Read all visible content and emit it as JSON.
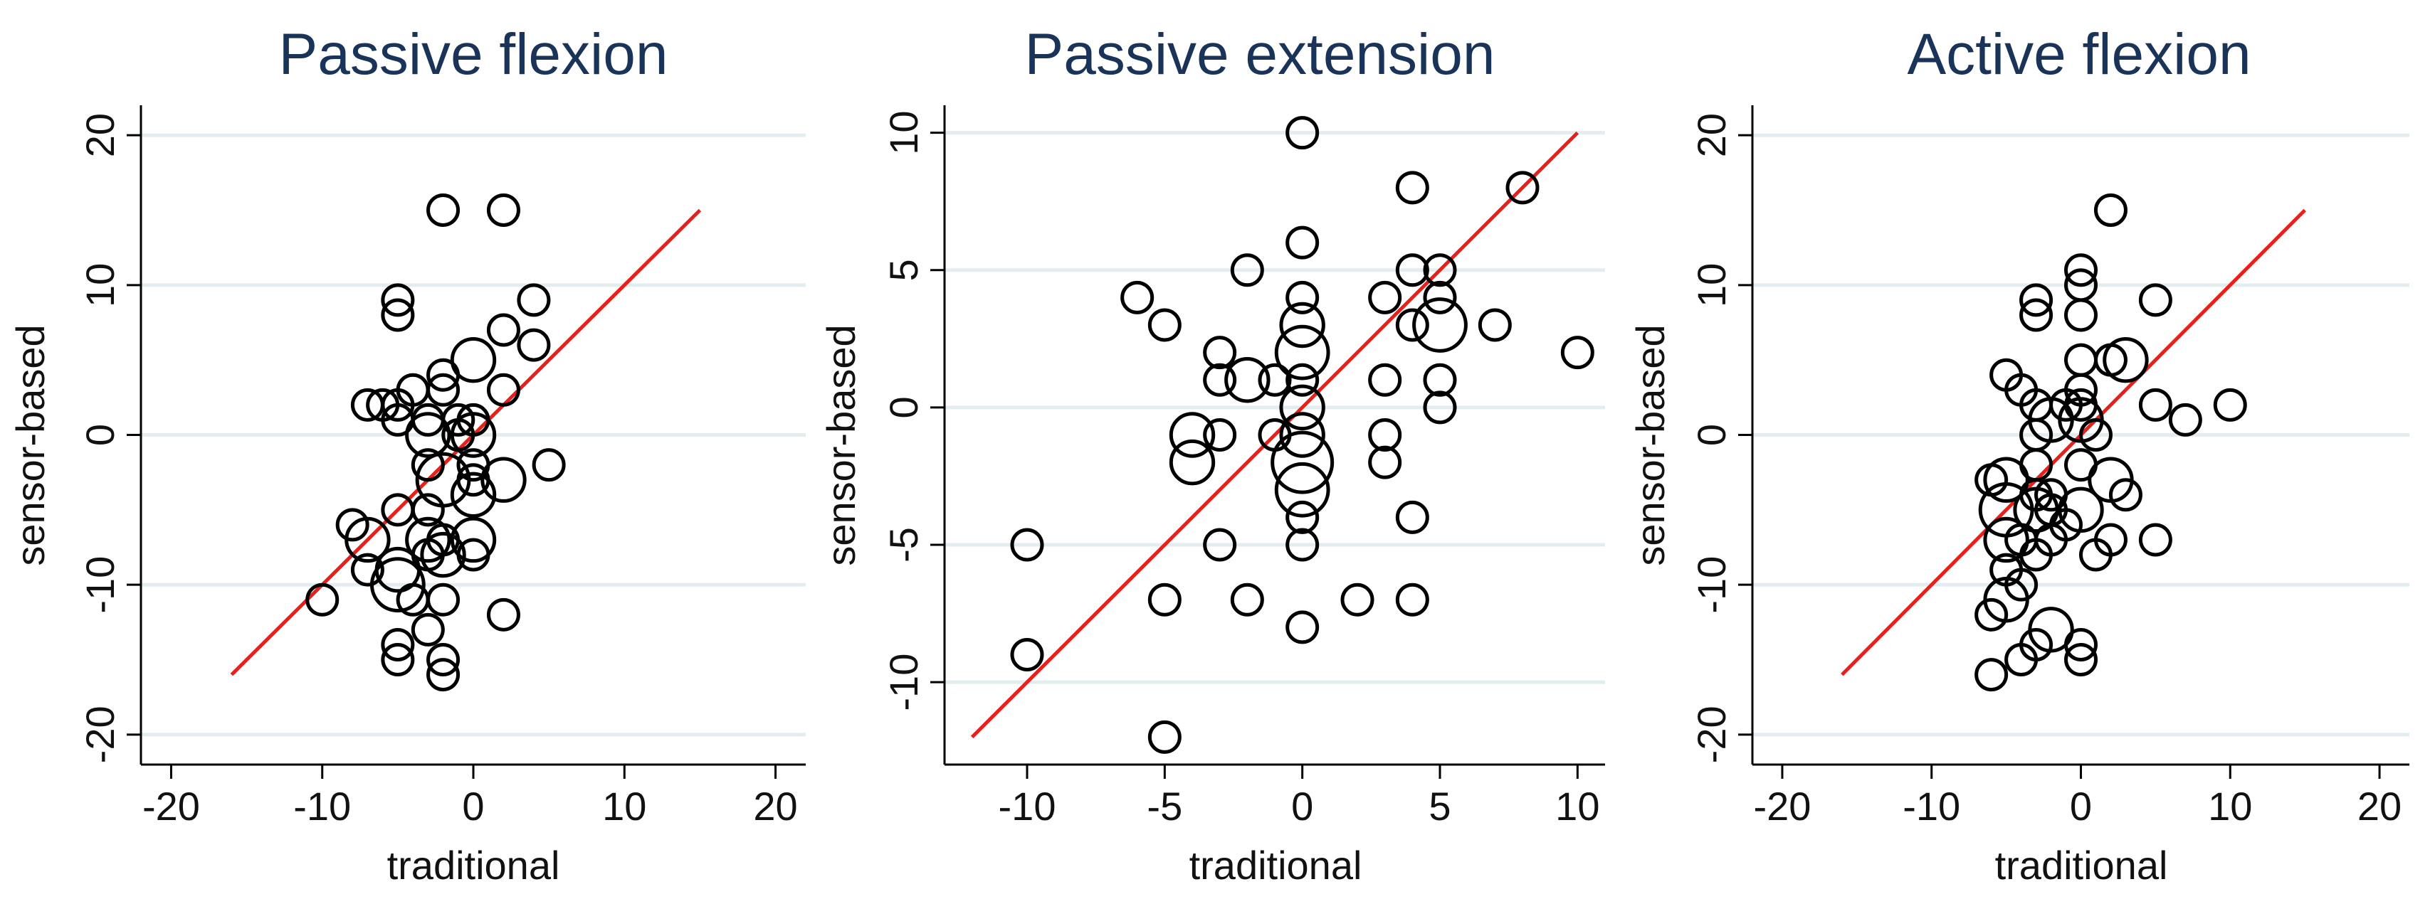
{
  "chart_data": [
    {
      "type": "scatter",
      "title": "Passive flexion",
      "xlabel": "traditional",
      "ylabel": "sensor-based",
      "xlim": [
        -22,
        22
      ],
      "ylim": [
        -22,
        22
      ],
      "xticks": [
        -20,
        -10,
        0,
        10,
        20
      ],
      "yticks": [
        -20,
        -10,
        0,
        10,
        20
      ],
      "grid": true,
      "line": {
        "x": [
          -16,
          15
        ],
        "y": [
          -16,
          15
        ],
        "color": "#e8201c"
      },
      "points": [
        {
          "x": -2,
          "y": 15,
          "n": 1
        },
        {
          "x": 2,
          "y": 15,
          "n": 1
        },
        {
          "x": 4,
          "y": 9,
          "n": 1
        },
        {
          "x": -5,
          "y": 9,
          "n": 1
        },
        {
          "x": -5,
          "y": 8,
          "n": 1
        },
        {
          "x": 2,
          "y": 7,
          "n": 1
        },
        {
          "x": 4,
          "y": 6,
          "n": 1
        },
        {
          "x": 0,
          "y": 5,
          "n": 2
        },
        {
          "x": -2,
          "y": 4,
          "n": 1
        },
        {
          "x": -4,
          "y": 3,
          "n": 1
        },
        {
          "x": -2,
          "y": 3,
          "n": 1
        },
        {
          "x": 2,
          "y": 3,
          "n": 1
        },
        {
          "x": -7,
          "y": 2,
          "n": 1
        },
        {
          "x": -6,
          "y": 2,
          "n": 1
        },
        {
          "x": -5,
          "y": 2,
          "n": 1
        },
        {
          "x": -5,
          "y": 1,
          "n": 1
        },
        {
          "x": -3,
          "y": 1,
          "n": 1
        },
        {
          "x": -1,
          "y": 1,
          "n": 1
        },
        {
          "x": 0,
          "y": 1,
          "n": 1
        },
        {
          "x": -3,
          "y": 0,
          "n": 2
        },
        {
          "x": -1,
          "y": 0,
          "n": 1
        },
        {
          "x": 0,
          "y": 0,
          "n": 2
        },
        {
          "x": -3,
          "y": -2,
          "n": 1
        },
        {
          "x": 0,
          "y": -2,
          "n": 1
        },
        {
          "x": 5,
          "y": -2,
          "n": 1
        },
        {
          "x": -2,
          "y": -3,
          "n": 3
        },
        {
          "x": 0,
          "y": -3,
          "n": 1
        },
        {
          "x": 2,
          "y": -3,
          "n": 2
        },
        {
          "x": 0,
          "y": -4,
          "n": 2
        },
        {
          "x": -5,
          "y": -5,
          "n": 1
        },
        {
          "x": -3,
          "y": -5,
          "n": 1
        },
        {
          "x": -8,
          "y": -6,
          "n": 1
        },
        {
          "x": -7,
          "y": -7,
          "n": 2
        },
        {
          "x": -3,
          "y": -7,
          "n": 2
        },
        {
          "x": -2,
          "y": -7,
          "n": 1
        },
        {
          "x": 0,
          "y": -7,
          "n": 2
        },
        {
          "x": -3,
          "y": -8,
          "n": 1
        },
        {
          "x": -2,
          "y": -8,
          "n": 2
        },
        {
          "x": 0,
          "y": -8,
          "n": 1
        },
        {
          "x": -7,
          "y": -9,
          "n": 1
        },
        {
          "x": -5,
          "y": -9,
          "n": 2
        },
        {
          "x": -5,
          "y": -10,
          "n": 3
        },
        {
          "x": -10,
          "y": -11,
          "n": 1
        },
        {
          "x": -4,
          "y": -11,
          "n": 1
        },
        {
          "x": -2,
          "y": -11,
          "n": 1
        },
        {
          "x": 2,
          "y": -12,
          "n": 1
        },
        {
          "x": -3,
          "y": -13,
          "n": 1
        },
        {
          "x": -5,
          "y": -14,
          "n": 1
        },
        {
          "x": -5,
          "y": -15,
          "n": 1
        },
        {
          "x": -2,
          "y": -15,
          "n": 1
        },
        {
          "x": -2,
          "y": -16,
          "n": 1
        }
      ]
    },
    {
      "type": "scatter",
      "title": "Passive extension",
      "xlabel": "traditional",
      "ylabel": "sensor-based",
      "xlim": [
        -13,
        11
      ],
      "ylim": [
        -13,
        11
      ],
      "xticks": [
        -10,
        -5,
        0,
        5,
        10
      ],
      "yticks": [
        -10,
        -5,
        0,
        5,
        10
      ],
      "grid": true,
      "line": {
        "x": [
          -12,
          10
        ],
        "y": [
          -12,
          10
        ],
        "color": "#e8201c"
      },
      "points": [
        {
          "x": 0,
          "y": 10,
          "n": 1
        },
        {
          "x": 4,
          "y": 8,
          "n": 1
        },
        {
          "x": 8,
          "y": 8,
          "n": 1
        },
        {
          "x": 0,
          "y": 6,
          "n": 1
        },
        {
          "x": -2,
          "y": 5,
          "n": 1
        },
        {
          "x": 4,
          "y": 5,
          "n": 1
        },
        {
          "x": 5,
          "y": 5,
          "n": 1
        },
        {
          "x": -6,
          "y": 4,
          "n": 1
        },
        {
          "x": 0,
          "y": 4,
          "n": 1
        },
        {
          "x": 3,
          "y": 4,
          "n": 1
        },
        {
          "x": 5,
          "y": 4,
          "n": 1
        },
        {
          "x": -5,
          "y": 3,
          "n": 1
        },
        {
          "x": 0,
          "y": 3,
          "n": 2
        },
        {
          "x": 4,
          "y": 3,
          "n": 1
        },
        {
          "x": 5,
          "y": 3,
          "n": 3
        },
        {
          "x": 7,
          "y": 3,
          "n": 1
        },
        {
          "x": -3,
          "y": 2,
          "n": 1
        },
        {
          "x": 0,
          "y": 2,
          "n": 3
        },
        {
          "x": 10,
          "y": 2,
          "n": 1
        },
        {
          "x": -3,
          "y": 1,
          "n": 1
        },
        {
          "x": -2,
          "y": 1,
          "n": 2
        },
        {
          "x": -1,
          "y": 1,
          "n": 1
        },
        {
          "x": 0,
          "y": 1,
          "n": 1
        },
        {
          "x": 3,
          "y": 1,
          "n": 1
        },
        {
          "x": 5,
          "y": 1,
          "n": 1
        },
        {
          "x": 0,
          "y": 0,
          "n": 2
        },
        {
          "x": 5,
          "y": 0,
          "n": 1
        },
        {
          "x": -4,
          "y": -1,
          "n": 2
        },
        {
          "x": -3,
          "y": -1,
          "n": 1
        },
        {
          "x": -1,
          "y": -1,
          "n": 1
        },
        {
          "x": 0,
          "y": -1,
          "n": 2
        },
        {
          "x": 3,
          "y": -1,
          "n": 1
        },
        {
          "x": -4,
          "y": -2,
          "n": 2
        },
        {
          "x": 0,
          "y": -2,
          "n": 4
        },
        {
          "x": 3,
          "y": -2,
          "n": 1
        },
        {
          "x": 0,
          "y": -3,
          "n": 3
        },
        {
          "x": 0,
          "y": -4,
          "n": 1
        },
        {
          "x": 4,
          "y": -4,
          "n": 1
        },
        {
          "x": -10,
          "y": -5,
          "n": 1
        },
        {
          "x": -3,
          "y": -5,
          "n": 1
        },
        {
          "x": 0,
          "y": -5,
          "n": 1
        },
        {
          "x": -5,
          "y": -7,
          "n": 1
        },
        {
          "x": -2,
          "y": -7,
          "n": 1
        },
        {
          "x": 2,
          "y": -7,
          "n": 1
        },
        {
          "x": 4,
          "y": -7,
          "n": 1
        },
        {
          "x": 0,
          "y": -8,
          "n": 1
        },
        {
          "x": -10,
          "y": -9,
          "n": 1
        },
        {
          "x": -5,
          "y": -12,
          "n": 1
        }
      ]
    },
    {
      "type": "scatter",
      "title": "Active flexion",
      "xlabel": "traditional",
      "ylabel": "sensor-based",
      "xlim": [
        -22,
        22
      ],
      "ylim": [
        -22,
        22
      ],
      "xticks": [
        -20,
        -10,
        0,
        10,
        20
      ],
      "yticks": [
        -20,
        -10,
        0,
        10,
        20
      ],
      "grid": true,
      "line": {
        "x": [
          -16,
          15
        ],
        "y": [
          -16,
          15
        ],
        "color": "#e8201c"
      },
      "points": [
        {
          "x": 2,
          "y": 15,
          "n": 1
        },
        {
          "x": 0,
          "y": 11,
          "n": 1
        },
        {
          "x": 0,
          "y": 10,
          "n": 1
        },
        {
          "x": -3,
          "y": 9,
          "n": 1
        },
        {
          "x": 5,
          "y": 9,
          "n": 1
        },
        {
          "x": -3,
          "y": 8,
          "n": 1
        },
        {
          "x": 0,
          "y": 8,
          "n": 1
        },
        {
          "x": 0,
          "y": 5,
          "n": 1
        },
        {
          "x": 2,
          "y": 5,
          "n": 1
        },
        {
          "x": 3,
          "y": 5,
          "n": 2
        },
        {
          "x": -5,
          "y": 4,
          "n": 1
        },
        {
          "x": -4,
          "y": 3,
          "n": 1
        },
        {
          "x": 0,
          "y": 3,
          "n": 1
        },
        {
          "x": -3,
          "y": 2,
          "n": 1
        },
        {
          "x": -1,
          "y": 2,
          "n": 1
        },
        {
          "x": 0,
          "y": 2,
          "n": 1
        },
        {
          "x": 5,
          "y": 2,
          "n": 1
        },
        {
          "x": 10,
          "y": 2,
          "n": 1
        },
        {
          "x": -2,
          "y": 1,
          "n": 2
        },
        {
          "x": 0,
          "y": 1,
          "n": 2
        },
        {
          "x": 7,
          "y": 1,
          "n": 1
        },
        {
          "x": -3,
          "y": 0,
          "n": 1
        },
        {
          "x": 1,
          "y": 0,
          "n": 1
        },
        {
          "x": -3,
          "y": -2,
          "n": 1
        },
        {
          "x": 0,
          "y": -2,
          "n": 1
        },
        {
          "x": -6,
          "y": -3,
          "n": 1
        },
        {
          "x": -5,
          "y": -3,
          "n": 2
        },
        {
          "x": 2,
          "y": -3,
          "n": 2
        },
        {
          "x": -3,
          "y": -4,
          "n": 1
        },
        {
          "x": -2,
          "y": -4,
          "n": 1
        },
        {
          "x": 3,
          "y": -4,
          "n": 1
        },
        {
          "x": -5,
          "y": -5,
          "n": 3
        },
        {
          "x": -3,
          "y": -5,
          "n": 2
        },
        {
          "x": -2,
          "y": -5,
          "n": 1
        },
        {
          "x": 0,
          "y": -5,
          "n": 2
        },
        {
          "x": -1,
          "y": -6,
          "n": 1
        },
        {
          "x": -5,
          "y": -7,
          "n": 2
        },
        {
          "x": -4,
          "y": -7,
          "n": 1
        },
        {
          "x": -2,
          "y": -7,
          "n": 1
        },
        {
          "x": 2,
          "y": -7,
          "n": 1
        },
        {
          "x": 5,
          "y": -7,
          "n": 1
        },
        {
          "x": -3,
          "y": -8,
          "n": 1
        },
        {
          "x": 1,
          "y": -8,
          "n": 1
        },
        {
          "x": -5,
          "y": -9,
          "n": 1
        },
        {
          "x": -4,
          "y": -10,
          "n": 1
        },
        {
          "x": -5,
          "y": -11,
          "n": 2
        },
        {
          "x": -6,
          "y": -12,
          "n": 1
        },
        {
          "x": -2,
          "y": -13,
          "n": 2
        },
        {
          "x": -3,
          "y": -14,
          "n": 1
        },
        {
          "x": 0,
          "y": -14,
          "n": 1
        },
        {
          "x": -4,
          "y": -15,
          "n": 1
        },
        {
          "x": 0,
          "y": -15,
          "n": 1
        },
        {
          "x": -6,
          "y": -16,
          "n": 1
        }
      ]
    }
  ]
}
